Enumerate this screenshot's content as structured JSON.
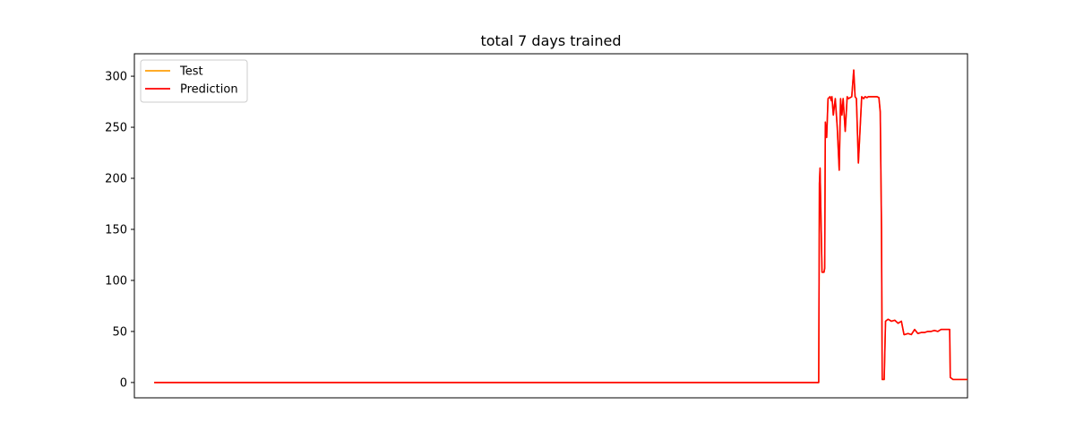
{
  "chart_data": {
    "type": "line",
    "title": "total 7 days trained",
    "xlabel": "",
    "ylabel": "",
    "ylim": [
      -15,
      322
    ],
    "xlim": [
      -30,
      1230
    ],
    "yticks": [
      0,
      50,
      100,
      150,
      200,
      250,
      300
    ],
    "xticks": [],
    "grid": false,
    "legend_position": "top-left",
    "series": [
      {
        "name": "Test",
        "color": "#ff9f0a",
        "x": [
          0,
          1000,
          1005,
          1006,
          1007,
          1010,
          1013,
          1014,
          1015,
          1017,
          1019,
          1022,
          1024,
          1025,
          1027,
          1030,
          1033,
          1036,
          1038,
          1040,
          1042,
          1045,
          1048,
          1050,
          1055,
          1058,
          1060,
          1062,
          1065,
          1070,
          1073,
          1075,
          1078,
          1080,
          1085,
          1090,
          1093,
          1096,
          1098,
          1100,
          1101,
          1102,
          1104,
          1106,
          1110,
          1115,
          1120,
          1125,
          1130,
          1134,
          1135,
          1140,
          1145,
          1150,
          1155,
          1160,
          1165,
          1170,
          1175,
          1180,
          1185,
          1190,
          1195,
          1200,
          1203,
          1204,
          1208,
          1230
        ],
        "y": [
          0,
          0,
          0,
          195,
          210,
          108,
          108,
          112,
          255,
          240,
          278,
          280,
          276,
          280,
          262,
          278,
          250,
          208,
          278,
          262,
          278,
          246,
          280,
          278,
          280,
          306,
          280,
          278,
          215,
          280,
          278,
          280,
          279,
          280,
          280,
          280,
          280,
          279,
          265,
          150,
          3,
          3,
          3,
          60,
          62,
          60,
          61,
          58,
          60,
          47,
          47,
          48,
          47,
          52,
          48,
          49,
          49,
          50,
          50,
          51,
          50,
          52,
          52,
          52,
          52,
          5,
          3,
          3
        ]
      },
      {
        "name": "Prediction",
        "color": "#ff0000",
        "x": [
          0,
          1000,
          1005,
          1006,
          1007,
          1010,
          1013,
          1014,
          1015,
          1017,
          1019,
          1022,
          1024,
          1025,
          1027,
          1030,
          1033,
          1036,
          1038,
          1040,
          1042,
          1045,
          1048,
          1050,
          1055,
          1058,
          1060,
          1062,
          1065,
          1070,
          1073,
          1075,
          1078,
          1080,
          1085,
          1090,
          1093,
          1096,
          1098,
          1100,
          1101,
          1102,
          1104,
          1106,
          1110,
          1115,
          1120,
          1125,
          1130,
          1134,
          1135,
          1140,
          1145,
          1150,
          1155,
          1160,
          1165,
          1170,
          1175,
          1180,
          1185,
          1190,
          1195,
          1200,
          1203,
          1204,
          1208,
          1230
        ],
        "y": [
          0,
          0,
          0,
          195,
          210,
          108,
          108,
          112,
          255,
          240,
          278,
          280,
          276,
          280,
          262,
          278,
          250,
          208,
          278,
          262,
          278,
          246,
          280,
          278,
          280,
          306,
          280,
          278,
          215,
          280,
          278,
          280,
          279,
          280,
          280,
          280,
          280,
          279,
          265,
          150,
          3,
          3,
          3,
          60,
          62,
          60,
          61,
          58,
          60,
          47,
          47,
          48,
          47,
          52,
          48,
          49,
          49,
          50,
          50,
          51,
          50,
          52,
          52,
          52,
          52,
          5,
          3,
          3
        ]
      }
    ]
  },
  "colors": {
    "axes": "#000000",
    "background": "#ffffff"
  }
}
